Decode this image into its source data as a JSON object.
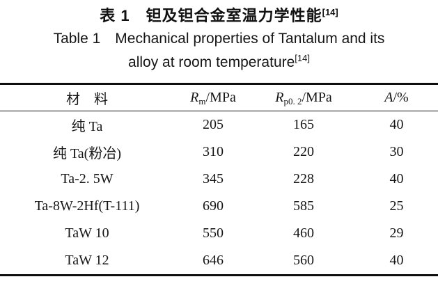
{
  "page": {
    "background_color": "#ffffff",
    "text_color": "#1c1c1c",
    "rule_color": "#0e0e0e"
  },
  "title": {
    "zh": "表 1　钽及钽合金室温力学性能",
    "zh_ref": "[14]",
    "en_line1": "Table 1　Mechanical properties of Tantalum and its",
    "en_line2": "alloy at room temperature",
    "en_ref": "[14]"
  },
  "table": {
    "headers": [
      {
        "label": "材　料"
      },
      {
        "symbol": "R",
        "sub": "m",
        "unit": "/MPa"
      },
      {
        "symbol": "R",
        "sub": "p0. 2",
        "unit": "/MPa"
      },
      {
        "symbol": "A",
        "sub": "",
        "unit": "/%"
      }
    ],
    "rows": [
      {
        "material": "纯 Ta",
        "rm": "205",
        "rp02": "165",
        "a": "40"
      },
      {
        "material": "纯 Ta(粉冶)",
        "rm": "310",
        "rp02": "220",
        "a": "30"
      },
      {
        "material": "Ta-2. 5W",
        "rm": "345",
        "rp02": "228",
        "a": "40"
      },
      {
        "material": "Ta-8W-2Hf(T-111)",
        "rm": "690",
        "rp02": "585",
        "a": "25"
      },
      {
        "material": "TaW 10",
        "rm": "550",
        "rp02": "460",
        "a": "29"
      },
      {
        "material": "TaW 12",
        "rm": "646",
        "rp02": "560",
        "a": "40"
      }
    ]
  }
}
